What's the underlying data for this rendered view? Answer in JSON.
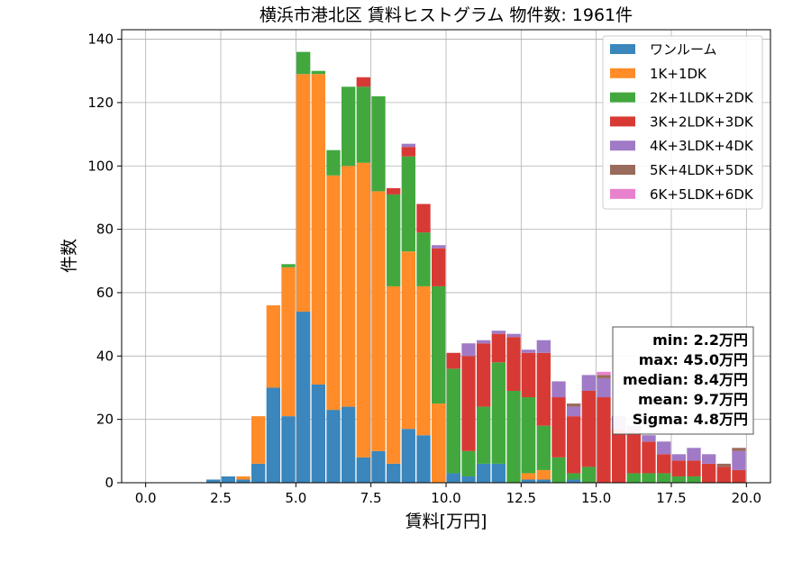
{
  "chart_data": {
    "type": "bar",
    "stacked": true,
    "title": "横浜市港北区 賃料ヒストグラム  物件数: 1961件",
    "xlabel": "賃料[万円]",
    "ylabel": "件数",
    "xlim": [
      -0.8,
      20.8
    ],
    "ylim": [
      0,
      143
    ],
    "xticks": [
      "0.0",
      "2.5",
      "5.0",
      "7.5",
      "10.0",
      "12.5",
      "15.0",
      "17.5",
      "20.0"
    ],
    "xtick_values": [
      0,
      2.5,
      5,
      7.5,
      10,
      12.5,
      15,
      17.5,
      20
    ],
    "yticks": [
      "0",
      "20",
      "40",
      "60",
      "80",
      "100",
      "120",
      "140"
    ],
    "ytick_values": [
      0,
      20,
      40,
      60,
      80,
      100,
      120,
      140
    ],
    "grid": true,
    "legend_position": "top-right",
    "bin_width": 0.5,
    "bins": [
      2.0,
      2.5,
      3.0,
      3.5,
      4.0,
      4.5,
      5.0,
      5.5,
      6.0,
      6.5,
      7.0,
      7.5,
      8.0,
      8.5,
      9.0,
      9.5,
      10.0,
      10.5,
      11.0,
      11.5,
      12.0,
      12.5,
      13.0,
      13.5,
      14.0,
      14.5,
      15.0,
      15.5,
      16.0,
      16.5,
      17.0,
      17.5,
      18.0,
      18.5,
      19.0,
      19.5
    ],
    "series": [
      {
        "name": "ワンルーム",
        "color": "#3a86bd",
        "values": [
          1,
          2,
          1,
          6,
          30,
          21,
          54,
          31,
          23,
          24,
          8,
          10,
          6,
          17,
          15,
          0,
          3,
          2,
          6,
          6,
          0,
          1,
          1,
          0,
          1,
          0,
          0,
          0,
          0,
          0,
          0,
          0,
          0,
          0,
          0,
          0
        ]
      },
      {
        "name": "1K+1DK",
        "color": "#ff8c28",
        "values": [
          0,
          0,
          1,
          15,
          26,
          47,
          75,
          98,
          74,
          76,
          93,
          82,
          56,
          56,
          47,
          25,
          0,
          0,
          0,
          0,
          0,
          2,
          3,
          0,
          0,
          0,
          0,
          0,
          0,
          0,
          0,
          0,
          0,
          0,
          0,
          0
        ]
      },
      {
        "name": "2K+1LDK+2DK",
        "color": "#42a83e",
        "values": [
          0,
          0,
          0,
          0,
          0,
          1,
          7,
          1,
          8,
          25,
          24,
          30,
          29,
          30,
          17,
          37,
          33,
          8,
          18,
          32,
          29,
          24,
          14,
          8,
          2,
          5,
          0,
          0,
          3,
          3,
          3,
          2,
          2,
          0,
          0,
          0
        ]
      },
      {
        "name": "3K+2LDK+3DK",
        "color": "#d73a35",
        "values": [
          0,
          0,
          0,
          0,
          0,
          0,
          0,
          0,
          0,
          0,
          3,
          0,
          2,
          3,
          9,
          12,
          5,
          30,
          20,
          9,
          17,
          14,
          23,
          19,
          18,
          24,
          27,
          17,
          13,
          10,
          6,
          5,
          5,
          6,
          5,
          4
        ]
      },
      {
        "name": "4K+3LDK+4DK",
        "color": "#a07ac6",
        "values": [
          0,
          0,
          0,
          0,
          0,
          0,
          0,
          0,
          0,
          0,
          0,
          0,
          0,
          1,
          0,
          1,
          0,
          4,
          1,
          1,
          1,
          1,
          4,
          5,
          3,
          5,
          6,
          4,
          2,
          2,
          4,
          2,
          4,
          3,
          0,
          6
        ]
      },
      {
        "name": "5K+4LDK+5DK",
        "color": "#9a6a5c",
        "values": [
          0,
          0,
          0,
          0,
          0,
          0,
          0,
          0,
          0,
          0,
          0,
          0,
          0,
          0,
          0,
          0,
          0,
          0,
          0,
          0,
          0,
          0,
          0,
          0,
          1,
          0,
          1,
          0,
          0,
          0,
          0,
          0,
          0,
          0,
          1,
          1
        ]
      },
      {
        "name": "6K+5LDK+6DK",
        "color": "#e882cc",
        "values": [
          0,
          0,
          0,
          0,
          0,
          0,
          0,
          0,
          0,
          0,
          0,
          0,
          0,
          0,
          0,
          0,
          0,
          0,
          0,
          0,
          0,
          0,
          0,
          0,
          0,
          0,
          1,
          0,
          0,
          0,
          0,
          0,
          0,
          0,
          0,
          0
        ]
      }
    ],
    "stats": [
      "min: 2.2万円",
      "max: 45.0万円",
      "median: 8.4万円",
      "mean: 9.7万円",
      "Sigma: 4.8万円"
    ]
  }
}
